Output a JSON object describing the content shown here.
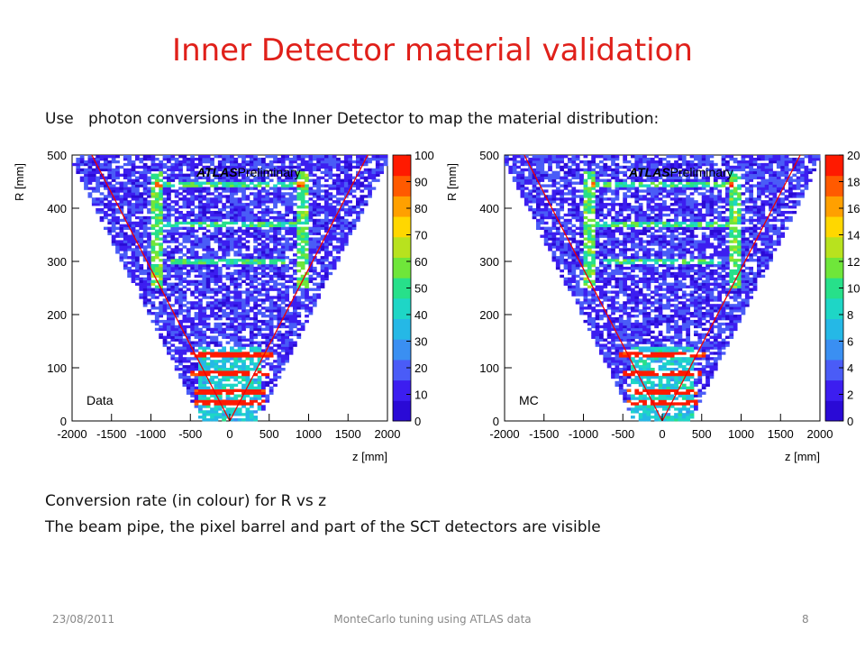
{
  "slide": {
    "title": "Inner Detector material validation",
    "intro": "Use   photon conversions in the Inner Detector to map the material distribution:",
    "caption1": "Conversion rate (in colour) for R vs z",
    "caption2": "The beam pipe, the pixel barrel and part of the SCT detectors are visible",
    "footer_date": "23/08/2011",
    "footer_title": "MonteCarlo tuning  using  ATLAS data",
    "page_number": "8"
  },
  "chart_data": [
    {
      "type": "heatmap",
      "label": "Data",
      "watermark_bold": "ATLAS",
      "watermark_text": "Preliminary",
      "xlabel": "z [mm]",
      "ylabel": "R [mm]",
      "xlim": [
        -2000,
        2000
      ],
      "ylim": [
        0,
        500
      ],
      "x_ticks": [
        "-2000",
        "-1500",
        "-1000",
        "-500",
        "0",
        "500",
        "1000",
        "1500",
        "2000"
      ],
      "y_ticks": [
        "0",
        "100",
        "200",
        "300",
        "400",
        "500"
      ],
      "colorbar_ticks": [
        "0",
        "10",
        "20",
        "30",
        "40",
        "50",
        "60",
        "70",
        "80",
        "90",
        "100"
      ],
      "colorbar_range": [
        0,
        100
      ]
    },
    {
      "type": "heatmap",
      "label": "MC",
      "watermark_bold": "ATLAS",
      "watermark_text": "Preliminary",
      "xlabel": "z [mm]",
      "ylabel": "R [mm]",
      "xlim": [
        -2000,
        2000
      ],
      "ylim": [
        0,
        500
      ],
      "x_ticks": [
        "-2000",
        "-1500",
        "-1000",
        "-500",
        "0",
        "500",
        "1000",
        "1500",
        "2000"
      ],
      "y_ticks": [
        "0",
        "100",
        "200",
        "300",
        "400",
        "500"
      ],
      "colorbar_ticks": [
        "0",
        "2",
        "4",
        "6",
        "8",
        "10",
        "12",
        "14",
        "16",
        "18",
        "20"
      ],
      "colorbar_range": [
        0,
        20
      ]
    }
  ]
}
